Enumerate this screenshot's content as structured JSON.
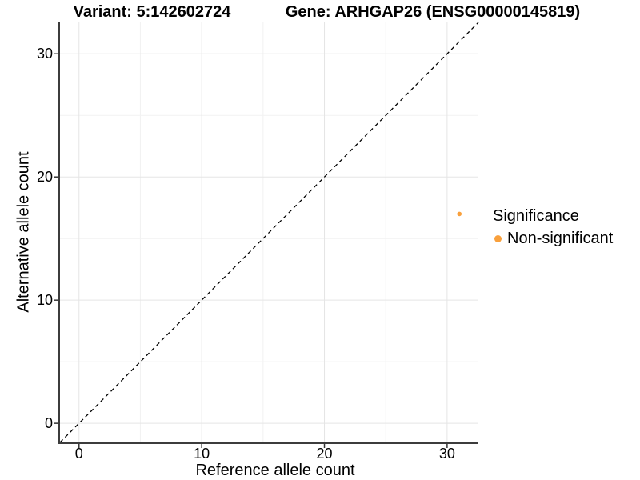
{
  "titles": {
    "variant": "Variant: 5:142602724",
    "gene": "Gene: ARHGAP26 (ENSG00000145819)"
  },
  "chart_data": {
    "type": "scatter",
    "title": "Variant: 5:142602724    Gene: ARHGAP26 (ENSG00000145819)",
    "xlabel": "Reference allele count",
    "ylabel": "Alternative allele count",
    "xlim": [
      -1.55,
      32.55
    ],
    "ylim": [
      -1.55,
      32.55
    ],
    "x_ticks": [
      0,
      10,
      20,
      30
    ],
    "y_ticks": [
      0,
      10,
      20,
      30
    ],
    "x_minor_ticks": [
      5,
      15,
      25
    ],
    "y_minor_ticks": [
      5,
      15,
      25
    ],
    "grid": "major and minor gridlines, white panel background",
    "identity_line": {
      "style": "dashed",
      "color": "#000000",
      "from": [
        -1.55,
        -1.55
      ],
      "to": [
        32.55,
        32.55
      ]
    },
    "series": [
      {
        "name": "Non-significant",
        "color": "#F9A03C",
        "point_radius": 2.8,
        "points": [
          {
            "x": 31,
            "y": 17
          }
        ]
      }
    ],
    "legend": {
      "title": "Significance",
      "position": "right",
      "entries": [
        {
          "label": "Non-significant",
          "color": "#F9A03C"
        }
      ]
    }
  },
  "colors": {
    "background": "#FFFFFF",
    "grid_major": "#E5E5E5",
    "grid_minor": "#F2F2F2",
    "axis_line": "#3C3C3C",
    "tick_mark": "#333333",
    "text": "#000000"
  }
}
